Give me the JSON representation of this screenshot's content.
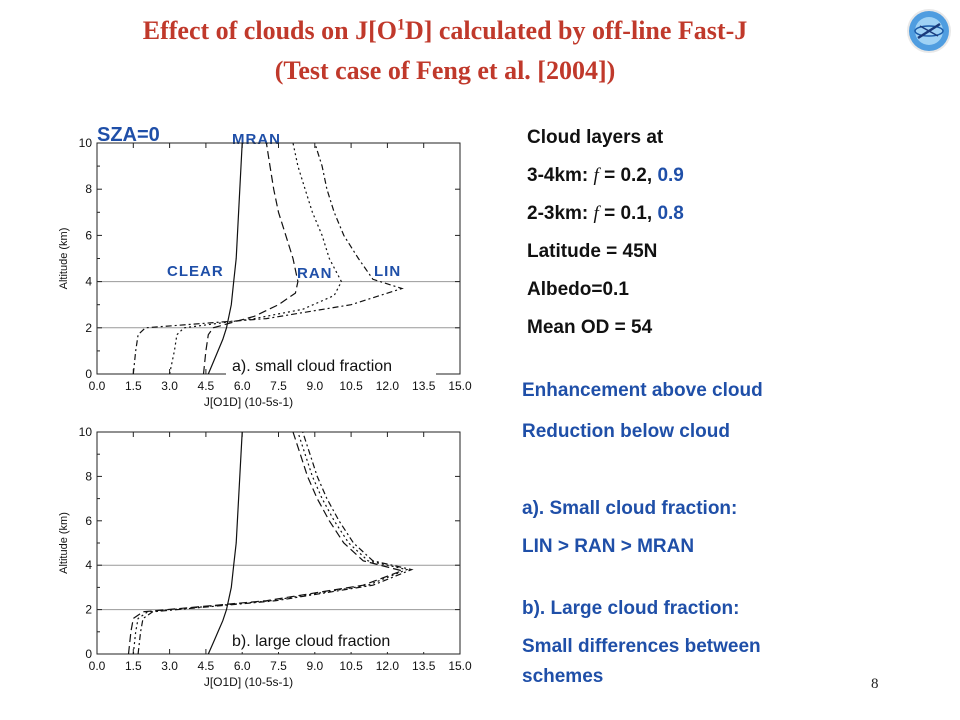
{
  "title_line1": "Effect of clouds on J[O",
  "title_sup": "1",
  "title_line1b": "D] calculated by off-line Fast-J",
  "title_line2": "(Test case of Feng et al. [2004])",
  "sza_label": "SZA=0",
  "labels": {
    "mran": "MRAN",
    "clear": "CLEAR",
    "ran": "RAN",
    "lin": "LIN"
  },
  "right": {
    "heading": "Cloud layers at",
    "l1_pre": "3-4km: ",
    "l1_f": "f",
    "l1_mid": " = 0.2, ",
    "l1_val": "0.9",
    "l2_pre": "2-3km: ",
    "l2_f": "f",
    "l2_mid": " = 0.1, ",
    "l2_val": "0.8",
    "latitude": "Latitude = 45N",
    "albedo": "Albedo=0.1",
    "od": "Mean OD = 54"
  },
  "notes": {
    "n1": "Enhancement above cloud",
    "n2": "Reduction below cloud",
    "n3": "a). Small cloud fraction:",
    "n4": "LIN > RAN > MRAN",
    "n5": "b). Large cloud fraction:",
    "n6": "Small differences between",
    "n7": "schemes"
  },
  "page_number": "8",
  "colors": {
    "title": "#c0392b",
    "accent": "#1f4fa8"
  },
  "chart_data": [
    {
      "type": "line",
      "caption": "a). small cloud fraction",
      "xlabel": "J[O1D] (10-5s-1)",
      "ylabel": "Altitude (km)",
      "xlim": [
        0,
        15
      ],
      "ylim": [
        0,
        10
      ],
      "xticks": [
        "0.0",
        "1.5",
        "3.0",
        "4.5",
        "6.0",
        "7.5",
        "9.0",
        "10.5",
        "12.0",
        "13.5",
        "15.0"
      ],
      "yticks": [
        "0",
        "2",
        "4",
        "6",
        "8",
        "10"
      ],
      "hlines": [
        2,
        4
      ],
      "series": [
        {
          "name": "CLEAR",
          "dash": "solid",
          "points": [
            [
              4.6,
              0
            ],
            [
              4.8,
              0.5
            ],
            [
              5.0,
              1
            ],
            [
              5.2,
              1.5
            ],
            [
              5.35,
              2
            ],
            [
              5.45,
              2.5
            ],
            [
              5.55,
              3
            ],
            [
              5.6,
              3.5
            ],
            [
              5.65,
              4
            ],
            [
              5.75,
              5
            ],
            [
              5.8,
              6
            ],
            [
              5.85,
              7
            ],
            [
              5.9,
              8
            ],
            [
              5.95,
              9
            ],
            [
              6.0,
              10
            ]
          ]
        },
        {
          "name": "MRAN",
          "dash": "longdash",
          "points": [
            [
              4.4,
              0
            ],
            [
              4.5,
              1
            ],
            [
              4.6,
              1.7
            ],
            [
              4.8,
              2
            ],
            [
              6.5,
              2.5
            ],
            [
              7.5,
              3
            ],
            [
              8.2,
              3.5
            ],
            [
              8.3,
              4
            ],
            [
              8.1,
              5
            ],
            [
              7.8,
              6
            ],
            [
              7.5,
              7
            ],
            [
              7.3,
              8
            ],
            [
              7.15,
              9
            ],
            [
              7.0,
              10
            ]
          ]
        },
        {
          "name": "RAN",
          "dash": "dotted",
          "points": [
            [
              3.0,
              0
            ],
            [
              3.2,
              1
            ],
            [
              3.3,
              1.7
            ],
            [
              3.6,
              2
            ],
            [
              6.5,
              2.4
            ],
            [
              8.5,
              2.8
            ],
            [
              9.8,
              3.4
            ],
            [
              10.1,
              4
            ],
            [
              9.6,
              5
            ],
            [
              9.3,
              6
            ],
            [
              8.9,
              7
            ],
            [
              8.6,
              8
            ],
            [
              8.3,
              9
            ],
            [
              8.1,
              10
            ]
          ]
        },
        {
          "name": "LIN",
          "dash": "dashdot",
          "points": [
            [
              1.5,
              0
            ],
            [
              1.6,
              1
            ],
            [
              1.7,
              1.7
            ],
            [
              2.0,
              2
            ],
            [
              7.0,
              2.4
            ],
            [
              10.5,
              3.0
            ],
            [
              12.6,
              3.7
            ],
            [
              11.4,
              4.1
            ],
            [
              10.8,
              5
            ],
            [
              10.2,
              6
            ],
            [
              9.8,
              7
            ],
            [
              9.5,
              8
            ],
            [
              9.3,
              9
            ],
            [
              9.0,
              10
            ]
          ]
        }
      ]
    },
    {
      "type": "line",
      "caption": "b). large cloud fraction",
      "xlabel": "J[O1D] (10-5s-1)",
      "ylabel": "Altitude (km)",
      "xlim": [
        0,
        15
      ],
      "ylim": [
        0,
        10
      ],
      "xticks": [
        "0.0",
        "1.5",
        "3.0",
        "4.5",
        "6.0",
        "7.5",
        "9.0",
        "10.5",
        "12.0",
        "13.5",
        "15.0"
      ],
      "yticks": [
        "0",
        "2",
        "4",
        "6",
        "8",
        "10"
      ],
      "hlines": [
        2,
        4
      ],
      "series": [
        {
          "name": "CLEAR",
          "dash": "solid",
          "points": [
            [
              4.6,
              0
            ],
            [
              4.8,
              0.5
            ],
            [
              5.0,
              1
            ],
            [
              5.2,
              1.5
            ],
            [
              5.35,
              2
            ],
            [
              5.45,
              2.5
            ],
            [
              5.55,
              3
            ],
            [
              5.6,
              3.5
            ],
            [
              5.65,
              4
            ],
            [
              5.75,
              5
            ],
            [
              5.8,
              6
            ],
            [
              5.85,
              7
            ],
            [
              5.9,
              8
            ],
            [
              5.95,
              9
            ],
            [
              6.0,
              10
            ]
          ]
        },
        {
          "name": "MRAN",
          "dash": "longdash",
          "points": [
            [
              1.3,
              0
            ],
            [
              1.4,
              1
            ],
            [
              1.5,
              1.6
            ],
            [
              1.9,
              1.9
            ],
            [
              7.0,
              2.4
            ],
            [
              11.0,
              3.1
            ],
            [
              12.6,
              3.75
            ],
            [
              11.0,
              4.2
            ],
            [
              10.2,
              5
            ],
            [
              9.6,
              6
            ],
            [
              9.1,
              7
            ],
            [
              8.7,
              8
            ],
            [
              8.4,
              9
            ],
            [
              8.1,
              10
            ]
          ]
        },
        {
          "name": "RAN",
          "dash": "dotted",
          "points": [
            [
              1.5,
              0
            ],
            [
              1.6,
              1
            ],
            [
              1.7,
              1.6
            ],
            [
              2.1,
              1.9
            ],
            [
              7.2,
              2.4
            ],
            [
              11.2,
              3.1
            ],
            [
              12.8,
              3.8
            ],
            [
              11.2,
              4.2
            ],
            [
              10.4,
              5
            ],
            [
              9.8,
              6
            ],
            [
              9.3,
              7
            ],
            [
              8.9,
              8
            ],
            [
              8.6,
              9
            ],
            [
              8.3,
              10
            ]
          ]
        },
        {
          "name": "LIN",
          "dash": "dashdot",
          "points": [
            [
              1.7,
              0
            ],
            [
              1.8,
              1
            ],
            [
              1.9,
              1.6
            ],
            [
              2.3,
              1.9
            ],
            [
              7.4,
              2.4
            ],
            [
              11.4,
              3.1
            ],
            [
              13.0,
              3.8
            ],
            [
              11.4,
              4.2
            ],
            [
              10.6,
              5
            ],
            [
              10.0,
              6
            ],
            [
              9.5,
              7
            ],
            [
              9.1,
              8
            ],
            [
              8.8,
              9
            ],
            [
              8.5,
              10
            ]
          ]
        }
      ]
    }
  ]
}
